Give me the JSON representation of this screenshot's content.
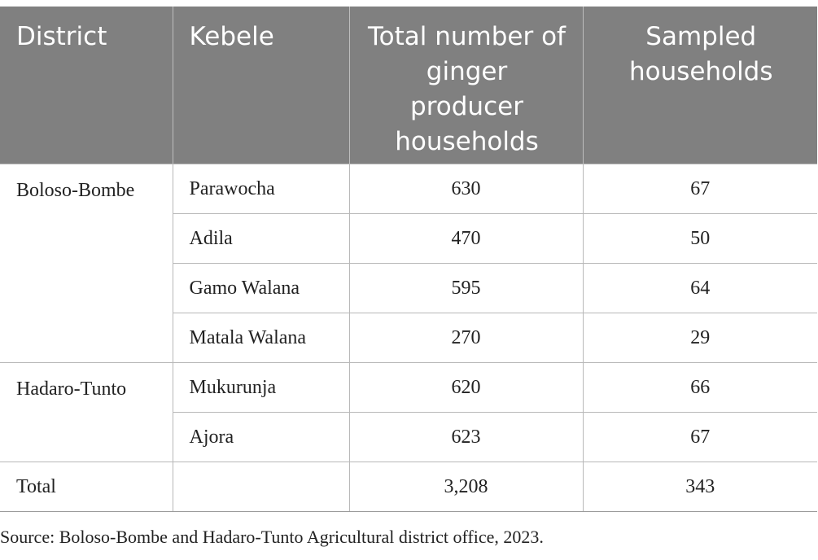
{
  "table": {
    "headers": [
      "District",
      "Kebele",
      "Total number of ginger producer households",
      "Sampled households"
    ],
    "groups": [
      {
        "district": "Boloso-Bombe",
        "rows": [
          {
            "kebele": "Parawocha",
            "total": "630",
            "sampled": "67"
          },
          {
            "kebele": "Adila",
            "total": "470",
            "sampled": "50"
          },
          {
            "kebele": "Gamo Walana",
            "total": "595",
            "sampled": "64"
          },
          {
            "kebele": "Matala Walana",
            "total": "270",
            "sampled": "29"
          }
        ]
      },
      {
        "district": "Hadaro-Tunto",
        "rows": [
          {
            "kebele": "Mukurunja",
            "total": "620",
            "sampled": "66"
          },
          {
            "kebele": "Ajora",
            "total": "623",
            "sampled": "67"
          }
        ]
      }
    ],
    "total_row": {
      "label": "Total",
      "kebele": "",
      "total": "3,208",
      "sampled": "343"
    }
  },
  "source_note": "Source: Boloso-Bombe and Hadaro-Tunto Agricultural district office, 2023."
}
